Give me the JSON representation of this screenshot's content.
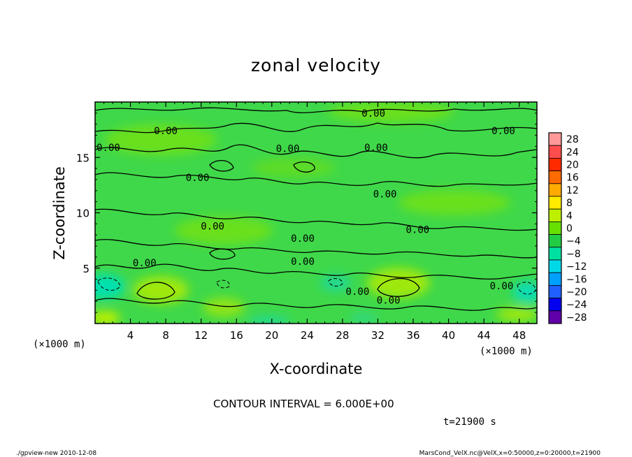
{
  "chart_data": {
    "type": "heatmap",
    "title": "zonal velocity",
    "xlabel": "X-coordinate",
    "ylabel": "Z-coordinate",
    "x_unit_left": "(×1000 m)",
    "x_unit_right": "(×1000 m)",
    "xlim": [
      0,
      50
    ],
    "ylim": [
      0,
      20
    ],
    "xticks": [
      4,
      8,
      12,
      16,
      20,
      24,
      28,
      32,
      36,
      40,
      44,
      48
    ],
    "yticks": [
      5,
      10,
      15
    ],
    "colorbar": {
      "levels": [
        28,
        24,
        20,
        16,
        12,
        8,
        4,
        0,
        -4,
        -8,
        -12,
        -16,
        -20,
        -24,
        -28
      ],
      "labels": [
        "28",
        "24",
        "20",
        "16",
        "12",
        "8",
        "4",
        "0",
        "−4",
        "−8",
        "−12",
        "−16",
        "−20",
        "−24",
        "−28"
      ],
      "colors": [
        "#ff9999",
        "#ff4d4d",
        "#ff2a00",
        "#ff6a00",
        "#ffaa00",
        "#ffea00",
        "#bdf000",
        "#66e000",
        "#22cc44",
        "#00e0a0",
        "#00d8e8",
        "#00a0ff",
        "#2060ff",
        "#0000ee",
        "#6000a8"
      ]
    },
    "contour_labels": [
      {
        "x": 8.0,
        "z": 17.4,
        "text": "0.00"
      },
      {
        "x": 1.5,
        "z": 15.9,
        "text": "0.00"
      },
      {
        "x": 21.8,
        "z": 15.8,
        "text": "0.00"
      },
      {
        "x": 31.5,
        "z": 19.0,
        "text": "0.00"
      },
      {
        "x": 31.8,
        "z": 15.9,
        "text": "0.00"
      },
      {
        "x": 46.2,
        "z": 17.4,
        "text": "0.00"
      },
      {
        "x": 11.6,
        "z": 13.2,
        "text": "0.00"
      },
      {
        "x": 32.8,
        "z": 11.7,
        "text": "0.00"
      },
      {
        "x": 13.3,
        "z": 8.8,
        "text": "0.00"
      },
      {
        "x": 23.5,
        "z": 7.7,
        "text": "0.00"
      },
      {
        "x": 36.5,
        "z": 8.5,
        "text": "0.00"
      },
      {
        "x": 5.6,
        "z": 5.5,
        "text": "0.00"
      },
      {
        "x": 23.5,
        "z": 5.6,
        "text": "0.00"
      },
      {
        "x": 29.7,
        "z": 2.9,
        "text": "0.00"
      },
      {
        "x": 33.2,
        "z": 2.1,
        "text": "0.00"
      },
      {
        "x": 46.0,
        "z": 3.4,
        "text": "0.00"
      }
    ],
    "annotations": {
      "contour_interval": "CONTOUR INTERVAL = 6.000E+00",
      "time": "t=21900 s",
      "footer_left": "./gpview-new  2010-12-08",
      "footer_right": "MarsCond_VelX.nc@VelX,x=0:50000,z=0:20000,t=21900"
    }
  }
}
